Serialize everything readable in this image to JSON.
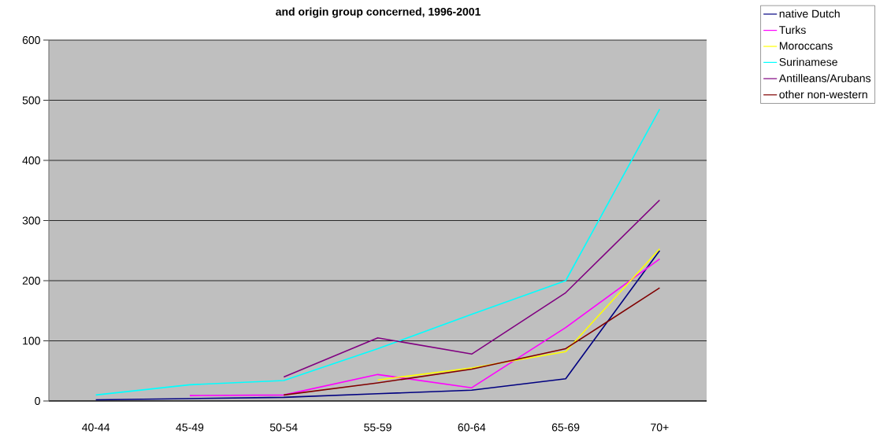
{
  "chart_data": {
    "type": "line",
    "title": "and origin group concerned, 1996-2001",
    "categories": [
      "40-44",
      "45-49",
      "50-54",
      "55-59",
      "60-64",
      "65-69",
      "70+"
    ],
    "series": [
      {
        "name": "native Dutch",
        "color": "#000080",
        "values": [
          2,
          4,
          6,
          12,
          18,
          37,
          250
        ]
      },
      {
        "name": "Turks",
        "color": "#ff00ff",
        "values": [
          null,
          9,
          10,
          44,
          22,
          122,
          236
        ]
      },
      {
        "name": "Moroccans",
        "color": "#ffff00",
        "values": [
          null,
          null,
          null,
          35,
          55,
          82,
          253
        ]
      },
      {
        "name": "Surinamese",
        "color": "#00ffff",
        "values": [
          10,
          27,
          34,
          87,
          144,
          200,
          485
        ]
      },
      {
        "name": "Antilleans/Arubans",
        "color": "#800080",
        "values": [
          null,
          null,
          40,
          105,
          78,
          180,
          334
        ]
      },
      {
        "name": "other non-western",
        "color": "#800000",
        "values": [
          null,
          null,
          10,
          30,
          53,
          87,
          188
        ]
      }
    ],
    "ylim": [
      0,
      600
    ],
    "yticks": [
      0,
      100,
      200,
      300,
      400,
      500,
      600
    ],
    "grid": "y",
    "legend": "top right"
  }
}
